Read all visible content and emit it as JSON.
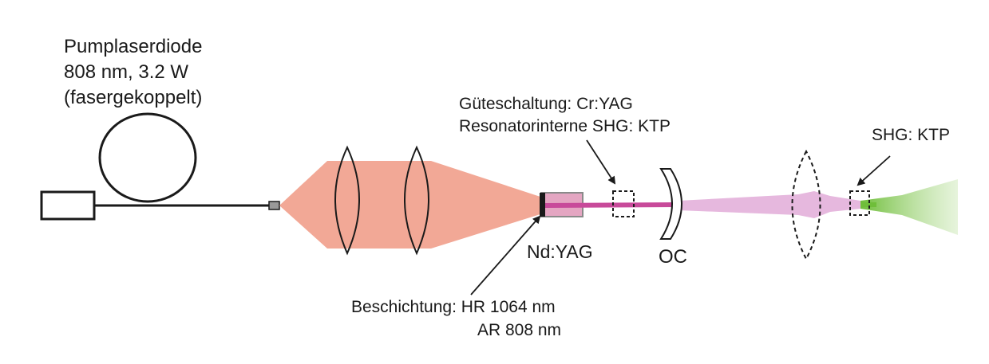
{
  "labels": {
    "pump_line1": "Pumplaserdiode",
    "pump_line2": "808 nm, 3.2 W",
    "pump_line3": "(fasergekoppelt)",
    "qswitch_line1": "Güteschaltung: Cr:YAG",
    "qswitch_line2": "Resonatorinterne SHG: KTP",
    "shg": "SHG: KTP",
    "crystal": "Nd:YAG",
    "oc": "OC",
    "coating_line1": "Beschichtung: HR 1064 nm",
    "coating_line2": "AR 808 nm"
  },
  "colors": {
    "pump_beam": "#f2a896",
    "ir_beam": "#e6b8de",
    "green_beam": "#7cc242",
    "crystal_fill": "#e4a6c2",
    "line": "#1a1a1a"
  }
}
